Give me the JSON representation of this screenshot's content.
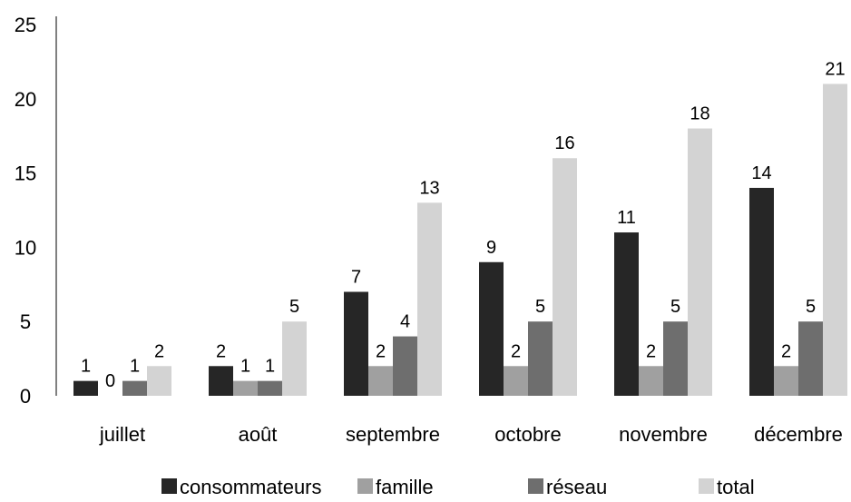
{
  "chart_data": {
    "type": "bar",
    "title": "",
    "xlabel": "",
    "ylabel": "",
    "ylim": [
      0,
      25
    ],
    "yticks": [
      0,
      5,
      10,
      15,
      20,
      25
    ],
    "grid": false,
    "legend_position": "bottom",
    "categories": [
      "juillet",
      "août",
      "septembre",
      "octobre",
      "novembre",
      "décembre"
    ],
    "series": [
      {
        "name": "consommateurs",
        "color": "#262626",
        "values": [
          1,
          2,
          7,
          9,
          11,
          14
        ]
      },
      {
        "name": "famille",
        "color": "#a0a0a0",
        "values": [
          0,
          1,
          2,
          2,
          2,
          2
        ]
      },
      {
        "name": "réseau",
        "color": "#6e6e6e",
        "values": [
          1,
          1,
          4,
          5,
          5,
          5
        ]
      },
      {
        "name": "total",
        "color": "#d3d3d3",
        "values": [
          2,
          5,
          13,
          16,
          18,
          21
        ]
      }
    ]
  }
}
